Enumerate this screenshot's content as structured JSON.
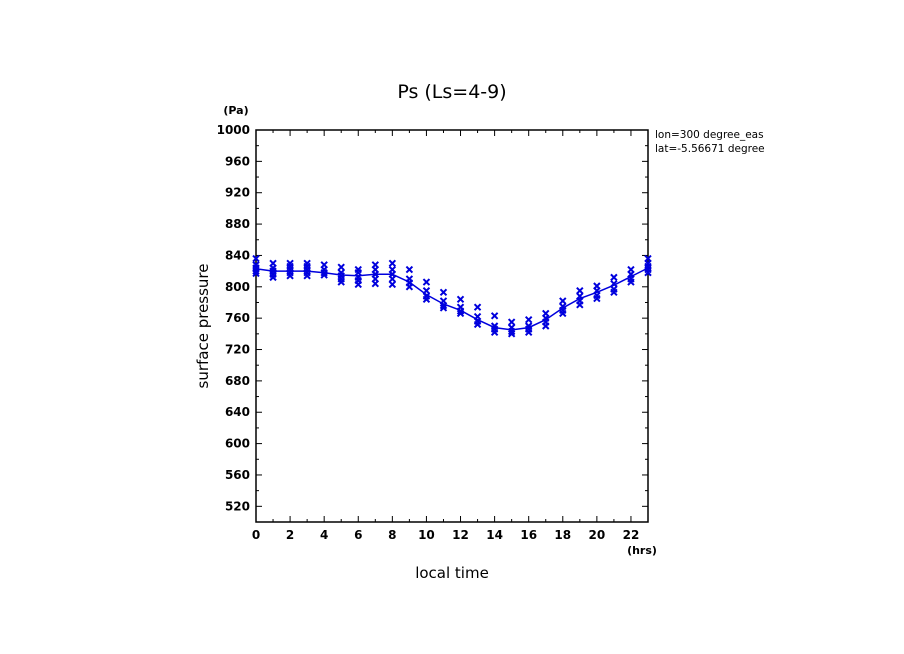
{
  "chart_data": {
    "type": "line",
    "title": "Ps (Ls=4-9)",
    "xlabel": "local time",
    "ylabel": "surface pressure",
    "xunit": "(hrs)",
    "yunit": "(Pa)",
    "xlim": [
      0,
      23
    ],
    "ylim": [
      500,
      1000
    ],
    "xticks": [
      0,
      2,
      4,
      6,
      8,
      10,
      12,
      14,
      16,
      18,
      20,
      22
    ],
    "yticks": [
      520,
      560,
      600,
      640,
      680,
      720,
      760,
      800,
      840,
      880,
      920,
      960,
      1000
    ],
    "grid": false,
    "annotations": [
      "lon=300 degree_eas",
      "lat=-5.56671 degree"
    ],
    "series": [
      {
        "marker": "line",
        "color": "#0000dd",
        "x": [
          0,
          1,
          2,
          3,
          4,
          5,
          6,
          7,
          8,
          9,
          10,
          11,
          12,
          13,
          14,
          15,
          16,
          17,
          18,
          19,
          20,
          21,
          22,
          23
        ],
        "y": [
          823,
          820,
          820,
          820,
          818,
          815,
          814,
          816,
          816,
          806,
          790,
          778,
          770,
          758,
          748,
          745,
          748,
          758,
          773,
          785,
          793,
          802,
          813,
          824
        ]
      },
      {
        "marker": "x",
        "color": "#0000dd",
        "points": [
          [
            0,
            836
          ],
          [
            0,
            828
          ],
          [
            0,
            824
          ],
          [
            0,
            820
          ],
          [
            0,
            817
          ],
          [
            1,
            830
          ],
          [
            1,
            824
          ],
          [
            1,
            820
          ],
          [
            1,
            816
          ],
          [
            1,
            812
          ],
          [
            2,
            830
          ],
          [
            2,
            826
          ],
          [
            2,
            822
          ],
          [
            2,
            818
          ],
          [
            2,
            814
          ],
          [
            3,
            830
          ],
          [
            3,
            826
          ],
          [
            3,
            822
          ],
          [
            3,
            818
          ],
          [
            3,
            814
          ],
          [
            4,
            828
          ],
          [
            4,
            822
          ],
          [
            4,
            818
          ],
          [
            4,
            815
          ],
          [
            5,
            825
          ],
          [
            5,
            818
          ],
          [
            5,
            814
          ],
          [
            5,
            810
          ],
          [
            5,
            806
          ],
          [
            6,
            822
          ],
          [
            6,
            818
          ],
          [
            6,
            812
          ],
          [
            6,
            808
          ],
          [
            6,
            803
          ],
          [
            7,
            828
          ],
          [
            7,
            822
          ],
          [
            7,
            816
          ],
          [
            7,
            810
          ],
          [
            7,
            804
          ],
          [
            8,
            830
          ],
          [
            8,
            822
          ],
          [
            8,
            816
          ],
          [
            8,
            810
          ],
          [
            8,
            803
          ],
          [
            9,
            822
          ],
          [
            9,
            810
          ],
          [
            9,
            805
          ],
          [
            9,
            800
          ],
          [
            10,
            806
          ],
          [
            10,
            795
          ],
          [
            10,
            788
          ],
          [
            10,
            784
          ],
          [
            11,
            793
          ],
          [
            11,
            782
          ],
          [
            11,
            776
          ],
          [
            11,
            773
          ],
          [
            12,
            784
          ],
          [
            12,
            774
          ],
          [
            12,
            769
          ],
          [
            12,
            766
          ],
          [
            13,
            774
          ],
          [
            13,
            762
          ],
          [
            13,
            756
          ],
          [
            13,
            752
          ],
          [
            14,
            763
          ],
          [
            14,
            750
          ],
          [
            14,
            746
          ],
          [
            14,
            742
          ],
          [
            15,
            755
          ],
          [
            15,
            748
          ],
          [
            15,
            743
          ],
          [
            15,
            740
          ],
          [
            16,
            758
          ],
          [
            16,
            750
          ],
          [
            16,
            746
          ],
          [
            16,
            742
          ],
          [
            17,
            766
          ],
          [
            17,
            760
          ],
          [
            17,
            755
          ],
          [
            17,
            750
          ],
          [
            18,
            782
          ],
          [
            18,
            775
          ],
          [
            18,
            770
          ],
          [
            18,
            766
          ],
          [
            19,
            795
          ],
          [
            19,
            788
          ],
          [
            19,
            782
          ],
          [
            19,
            777
          ],
          [
            20,
            801
          ],
          [
            20,
            795
          ],
          [
            20,
            789
          ],
          [
            20,
            785
          ],
          [
            21,
            812
          ],
          [
            21,
            804
          ],
          [
            21,
            797
          ],
          [
            21,
            793
          ],
          [
            22,
            822
          ],
          [
            22,
            816
          ],
          [
            22,
            810
          ],
          [
            22,
            806
          ],
          [
            23,
            836
          ],
          [
            23,
            830
          ],
          [
            23,
            826
          ],
          [
            23,
            822
          ],
          [
            23,
            818
          ]
        ]
      }
    ]
  }
}
